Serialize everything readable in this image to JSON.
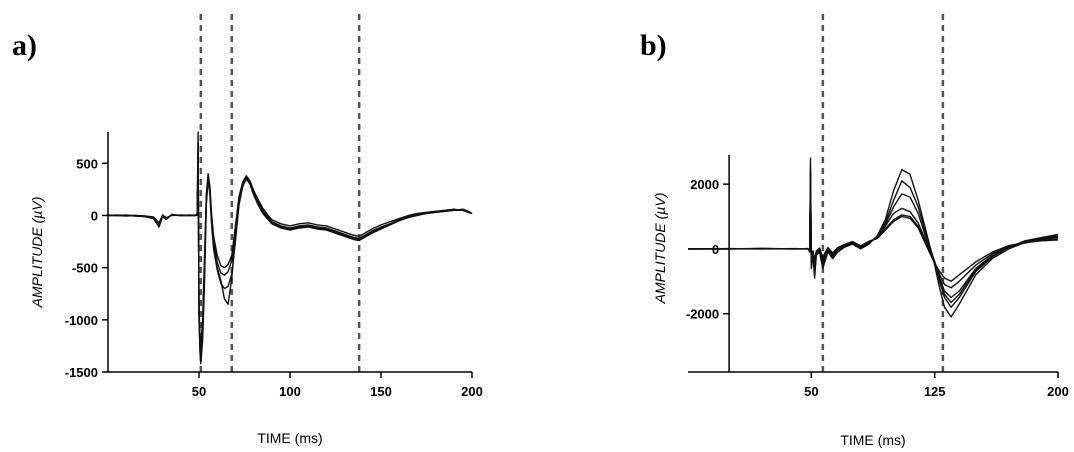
{
  "chart_data": [
    {
      "panel": "a)",
      "type": "line",
      "xlabel": "TIME  (ms)",
      "ylabel": "AMPLITUDE (µV)",
      "xlim": [
        0,
        200
      ],
      "ylim": [
        -1500,
        800
      ],
      "xticks": [
        50,
        100,
        150,
        200
      ],
      "yticks": [
        500,
        0,
        -500,
        -1000,
        -1500
      ],
      "vlines": [
        51,
        68,
        138
      ],
      "series": [
        {
          "x": [
            0,
            5,
            10,
            15,
            20,
            25,
            28,
            30,
            32,
            35,
            40,
            45,
            48,
            49,
            49.5,
            50,
            50.5,
            51,
            52,
            53,
            54,
            55,
            56,
            57,
            58,
            60,
            62,
            64,
            66,
            68,
            70,
            72,
            74,
            76,
            78,
            80,
            82,
            85,
            88,
            90,
            95,
            100,
            105,
            110,
            115,
            120,
            125,
            130,
            135,
            138,
            140,
            145,
            150,
            155,
            160,
            165,
            170,
            175,
            180,
            185,
            190,
            195,
            198,
            200
          ],
          "y": [
            0,
            0,
            -5,
            0,
            -10,
            -30,
            -110,
            -10,
            -40,
            10,
            0,
            0,
            0,
            20,
            800,
            -1000,
            -1200,
            -1300,
            -1100,
            -500,
            150,
            380,
            250,
            -50,
            -250,
            -450,
            -550,
            -570,
            -540,
            -430,
            -150,
            150,
            300,
            370,
            320,
            220,
            150,
            50,
            -20,
            -60,
            -100,
            -120,
            -100,
            -90,
            -110,
            -120,
            -150,
            -180,
            -210,
            -220,
            -200,
            -150,
            -110,
            -80,
            -40,
            -10,
            10,
            20,
            30,
            40,
            50,
            50,
            30,
            20
          ]
        },
        {
          "x": [
            0,
            5,
            10,
            15,
            20,
            25,
            28,
            30,
            32,
            35,
            40,
            45,
            48,
            49,
            49.5,
            50,
            50.5,
            51,
            52,
            53,
            54,
            55,
            56,
            57,
            58,
            60,
            62,
            64,
            66,
            68,
            70,
            72,
            74,
            76,
            78,
            80,
            82,
            85,
            88,
            90,
            95,
            100,
            105,
            110,
            115,
            120,
            125,
            130,
            135,
            138,
            140,
            145,
            150,
            155,
            160,
            165,
            170,
            175,
            180,
            185,
            190,
            195,
            198,
            200
          ],
          "y": [
            0,
            5,
            0,
            -5,
            -5,
            -20,
            -90,
            0,
            -30,
            5,
            0,
            5,
            0,
            10,
            600,
            -900,
            -1300,
            -1420,
            -1200,
            -650,
            100,
            350,
            200,
            -100,
            -320,
            -520,
            -650,
            -700,
            -680,
            -560,
            -250,
            100,
            280,
            350,
            300,
            200,
            120,
            20,
            -40,
            -80,
            -120,
            -140,
            -120,
            -110,
            -130,
            -140,
            -170,
            -200,
            -230,
            -240,
            -220,
            -170,
            -130,
            -90,
            -50,
            -20,
            0,
            20,
            30,
            40,
            50,
            60,
            40,
            20
          ]
        },
        {
          "x": [
            0,
            5,
            10,
            15,
            20,
            25,
            28,
            30,
            32,
            35,
            40,
            45,
            48,
            49,
            49.5,
            50,
            50.5,
            51,
            52,
            53,
            54,
            55,
            56,
            57,
            58,
            60,
            62,
            64,
            66,
            68,
            70,
            72,
            74,
            76,
            78,
            80,
            82,
            85,
            88,
            90,
            95,
            100,
            105,
            110,
            115,
            120,
            125,
            130,
            135,
            138,
            140,
            145,
            150,
            155,
            160,
            165,
            170,
            175,
            180,
            185,
            190,
            195,
            198,
            200
          ],
          "y": [
            5,
            0,
            0,
            0,
            -5,
            -15,
            -70,
            5,
            -20,
            0,
            5,
            0,
            5,
            0,
            500,
            -850,
            -1150,
            -1250,
            -1000,
            -400,
            200,
            400,
            280,
            0,
            -200,
            -380,
            -480,
            -500,
            -470,
            -380,
            -100,
            180,
            320,
            380,
            330,
            240,
            170,
            70,
            0,
            -40,
            -80,
            -100,
            -80,
            -70,
            -90,
            -100,
            -130,
            -160,
            -190,
            -200,
            -180,
            -130,
            -90,
            -60,
            -30,
            0,
            20,
            30,
            40,
            50,
            60,
            50,
            30,
            20
          ]
        },
        {
          "x": [
            0,
            5,
            10,
            15,
            20,
            25,
            28,
            30,
            32,
            35,
            40,
            45,
            48,
            49,
            49.5,
            50,
            50.5,
            51,
            52,
            53,
            54,
            55,
            56,
            57,
            58,
            60,
            62,
            64,
            66,
            68,
            70,
            72,
            74,
            76,
            78,
            80,
            82,
            85,
            88,
            90,
            95,
            100,
            105,
            110,
            115,
            120,
            125,
            130,
            135,
            138,
            140,
            145,
            150,
            155,
            160,
            165,
            170,
            175,
            180,
            185,
            190,
            195,
            198,
            200
          ],
          "y": [
            0,
            0,
            5,
            -5,
            -10,
            -25,
            -100,
            -5,
            -35,
            5,
            0,
            0,
            0,
            15,
            700,
            -950,
            -1250,
            -1350,
            -1150,
            -550,
            120,
            360,
            230,
            -80,
            -280,
            -500,
            -620,
            -800,
            -850,
            -600,
            -200,
            120,
            290,
            360,
            310,
            210,
            140,
            40,
            -30,
            -70,
            -110,
            -130,
            -110,
            -100,
            -120,
            -130,
            -160,
            -190,
            -220,
            -230,
            -210,
            -160,
            -120,
            -85,
            -45,
            -15,
            5,
            25,
            35,
            45,
            55,
            55,
            35,
            20
          ]
        }
      ]
    },
    {
      "panel": "b)",
      "type": "line",
      "xlabel": "TIME  (ms)",
      "ylabel": "AMPLITUDE (µV)",
      "xlim": [
        -25,
        200
      ],
      "ylim": [
        -3800,
        2900
      ],
      "xticks": [
        50,
        125,
        200
      ],
      "yticks": [
        2000,
        0,
        -2000
      ],
      "vlines": [
        57,
        130
      ],
      "series": [
        {
          "x": [
            -25,
            0,
            20,
            40,
            48,
            49,
            49.5,
            50,
            51,
            52,
            53,
            55,
            57,
            60,
            63,
            66,
            70,
            75,
            80,
            85,
            90,
            95,
            100,
            105,
            110,
            115,
            120,
            125,
            128,
            131,
            135,
            140,
            150,
            160,
            170,
            180,
            190,
            200
          ],
          "y": [
            0,
            0,
            20,
            0,
            10,
            -100,
            2800,
            -600,
            -200,
            -900,
            -200,
            -100,
            -600,
            -100,
            -300,
            -100,
            50,
            150,
            0,
            150,
            400,
            900,
            1800,
            2450,
            2300,
            1500,
            500,
            -500,
            -1200,
            -1800,
            -2100,
            -1700,
            -800,
            -300,
            0,
            200,
            350,
            450
          ]
        },
        {
          "x": [
            -25,
            0,
            20,
            40,
            48,
            49,
            49.5,
            50,
            51,
            52,
            53,
            55,
            57,
            60,
            63,
            66,
            70,
            75,
            80,
            85,
            90,
            95,
            100,
            105,
            110,
            115,
            120,
            125,
            128,
            131,
            135,
            140,
            150,
            160,
            170,
            180,
            190,
            200
          ],
          "y": [
            0,
            10,
            0,
            10,
            0,
            -80,
            2500,
            -400,
            -150,
            -700,
            -150,
            -50,
            -500,
            -50,
            -250,
            -50,
            80,
            180,
            20,
            180,
            380,
            800,
            1500,
            2100,
            1900,
            1300,
            400,
            -400,
            -1000,
            -1500,
            -1800,
            -1500,
            -700,
            -250,
            50,
            250,
            350,
            400
          ]
        },
        {
          "x": [
            -25,
            0,
            20,
            40,
            48,
            49,
            49.5,
            50,
            51,
            52,
            53,
            55,
            57,
            60,
            63,
            66,
            70,
            75,
            80,
            85,
            90,
            95,
            100,
            105,
            110,
            115,
            120,
            125,
            128,
            131,
            135,
            140,
            150,
            160,
            170,
            180,
            190,
            200
          ],
          "y": [
            0,
            0,
            10,
            0,
            5,
            -60,
            2200,
            -300,
            -100,
            -500,
            -100,
            0,
            -400,
            0,
            -200,
            0,
            100,
            200,
            50,
            200,
            350,
            700,
            1100,
            1250,
            1150,
            800,
            200,
            -400,
            -900,
            -1300,
            -1500,
            -1300,
            -600,
            -200,
            50,
            200,
            300,
            350
          ]
        },
        {
          "x": [
            -25,
            0,
            20,
            40,
            48,
            49,
            49.5,
            50,
            51,
            52,
            53,
            55,
            57,
            60,
            63,
            66,
            70,
            75,
            80,
            85,
            90,
            95,
            100,
            105,
            110,
            115,
            120,
            125,
            128,
            131,
            135,
            140,
            150,
            160,
            170,
            180,
            190,
            200
          ],
          "y": [
            0,
            5,
            0,
            5,
            0,
            -50,
            2000,
            -200,
            -80,
            -400,
            -80,
            20,
            -300,
            20,
            -150,
            20,
            120,
            220,
            80,
            220,
            330,
            620,
            900,
            1050,
            1000,
            700,
            150,
            -400,
            -800,
            -1100,
            -1200,
            -1000,
            -500,
            -150,
            80,
            180,
            280,
            300
          ]
        },
        {
          "x": [
            -25,
            0,
            20,
            40,
            48,
            49,
            49.5,
            50,
            51,
            52,
            53,
            55,
            57,
            60,
            63,
            66,
            70,
            75,
            80,
            85,
            90,
            95,
            100,
            105,
            110,
            115,
            120,
            125,
            128,
            131,
            135,
            140,
            150,
            160,
            170,
            180,
            190,
            200
          ],
          "y": [
            0,
            0,
            5,
            0,
            10,
            -40,
            1800,
            -150,
            -60,
            -350,
            -60,
            30,
            -250,
            40,
            -120,
            40,
            130,
            230,
            100,
            240,
            320,
            580,
            850,
            1000,
            950,
            650,
            100,
            -450,
            -700,
            -900,
            -1000,
            -800,
            -400,
            -100,
            100,
            200,
            250,
            280
          ]
        },
        {
          "x": [
            -25,
            0,
            20,
            40,
            48,
            49,
            49.5,
            50,
            51,
            52,
            53,
            55,
            57,
            60,
            63,
            66,
            70,
            75,
            80,
            85,
            90,
            95,
            100,
            105,
            110,
            115,
            120,
            125,
            128,
            131,
            135,
            140,
            150,
            160,
            170,
            180,
            190,
            200
          ],
          "y": [
            0,
            5,
            5,
            5,
            5,
            -70,
            2400,
            -350,
            -120,
            -600,
            -120,
            -20,
            -450,
            -20,
            -220,
            -20,
            90,
            190,
            40,
            200,
            360,
            750,
            1300,
            1700,
            1600,
            1100,
            300,
            -420,
            -950,
            -1400,
            -1650,
            -1400,
            -650,
            -220,
            60,
            220,
            320,
            380
          ]
        }
      ]
    }
  ]
}
